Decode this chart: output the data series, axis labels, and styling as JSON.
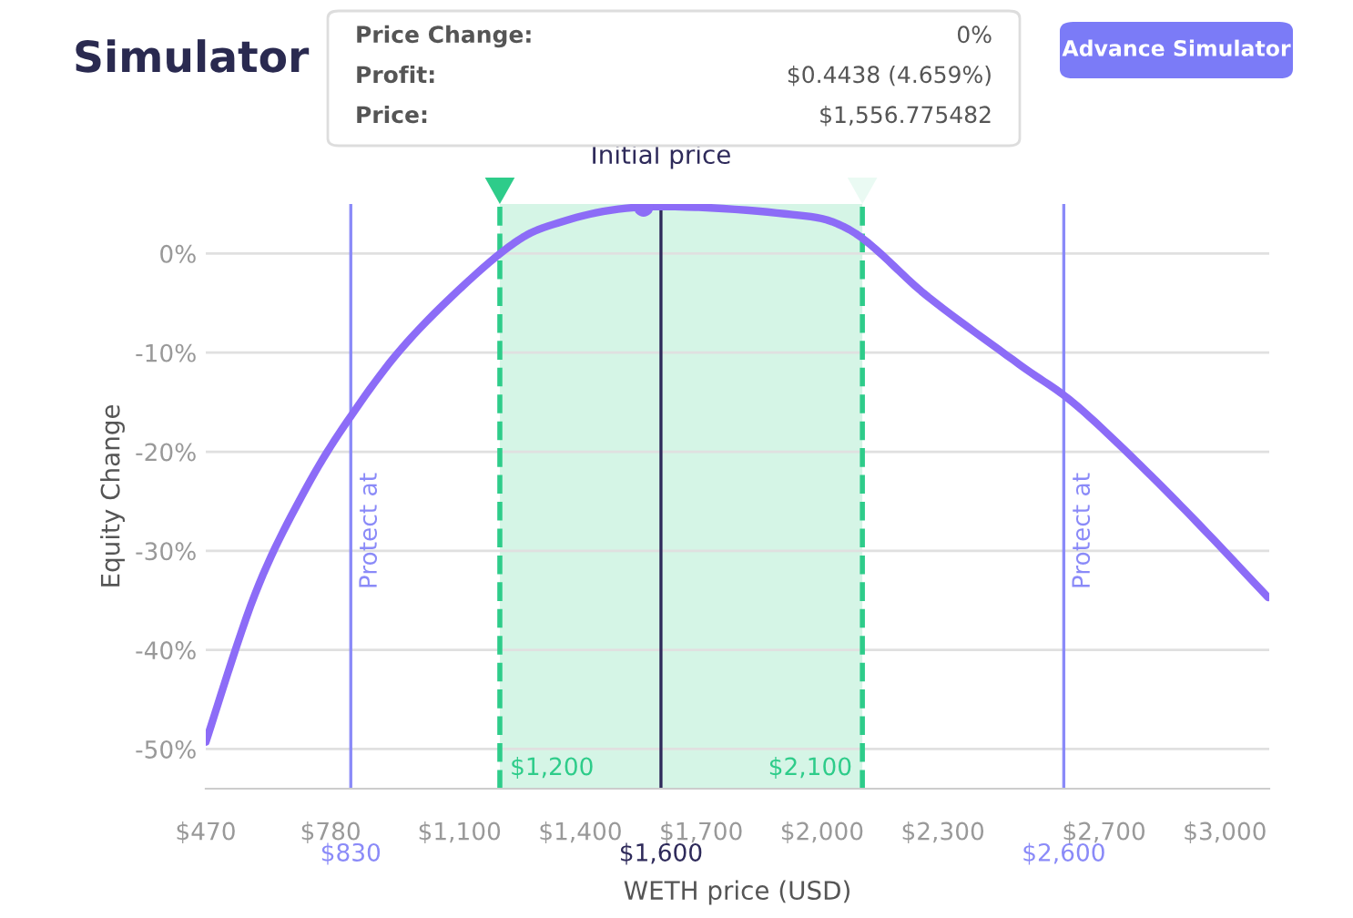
{
  "chart_data": {
    "type": "line",
    "title": "Simulator",
    "xlabel": "WETH price (USD)",
    "ylabel": "Equity Change",
    "x": [
      470,
      592,
      712,
      832,
      984,
      1207,
      1345,
      1556.775482,
      1887,
      2068,
      2264,
      2490,
      2625,
      2791,
      2942,
      3107
    ],
    "series": [
      {
        "color": "#8c6cf7",
        "values": [
          -49.3,
          -34.4,
          -24.2,
          -16.3,
          -8.3,
          0.2,
          3.1,
          4.7,
          4.1,
          2.4,
          -4.4,
          -11.2,
          -15.1,
          -21.4,
          -27.6,
          -34.7
        ]
      },
      {
        "type": "scatter",
        "color": "#8c6cf7",
        "x": [
          1556.775482
        ],
        "values": [
          4.7
        ]
      }
    ],
    "xlim": [
      470,
      3110
    ],
    "ylim": [
      -54,
      5
    ],
    "xticks": [
      {
        "value": 470,
        "label": "$470"
      },
      {
        "value": 780,
        "label": "$780"
      },
      {
        "value": 1100,
        "label": "$1,100"
      },
      {
        "value": 1400,
        "label": "$1,400"
      },
      {
        "value": 1700,
        "label": "$1,700"
      },
      {
        "value": 2000,
        "label": "$2,000"
      },
      {
        "value": 2300,
        "label": "$2,300"
      },
      {
        "value": 2700,
        "label": "$2,700"
      },
      {
        "value": 3000,
        "label": "$3,000"
      }
    ],
    "yticks": [
      {
        "value": 0,
        "label": "0%"
      },
      {
        "value": -10,
        "label": "-10%"
      },
      {
        "value": -20,
        "label": "-20%"
      },
      {
        "value": -30,
        "label": "-30%"
      },
      {
        "value": -40,
        "label": "-40%"
      },
      {
        "value": -50,
        "label": "-50%"
      }
    ],
    "grid": "y",
    "legend": false,
    "line_style": "solid",
    "ref_lines": [
      {
        "axis": "x",
        "value": 830,
        "label": "Protect at",
        "color": "#8a8af8"
      },
      {
        "axis": "x",
        "value": 1600,
        "label": "Initial price",
        "color": "#2e2a5a"
      },
      {
        "axis": "x",
        "value": 2600,
        "label": "Protect at",
        "color": "#8a8af8"
      },
      {
        "axis": "x",
        "value": 1200,
        "color": "#2ecc8a",
        "line_style": "dashed"
      },
      {
        "axis": "x",
        "value": 2100,
        "color": "#2ecc8a",
        "line_style": "dashed"
      }
    ],
    "bands": [
      {
        "axis": "x",
        "from": 1200,
        "to": 2100,
        "color": "#d5f5e6"
      }
    ],
    "annotations": [
      {
        "text": "$830",
        "x": 830,
        "y": -54
      },
      {
        "text": "$1,600",
        "x": 1600,
        "y": -54
      },
      {
        "text": "$2,600",
        "x": 2600,
        "y": -54
      },
      {
        "text": "$1,200",
        "x": 1200,
        "y": -54
      },
      {
        "text": "$2,100",
        "x": 2100,
        "y": -54
      },
      "Advance Simulator",
      "Price Change:",
      "0%",
      "Profit:",
      "$0.4438 (4.659%)",
      "Price:",
      "$1,556.775482"
    ]
  }
}
